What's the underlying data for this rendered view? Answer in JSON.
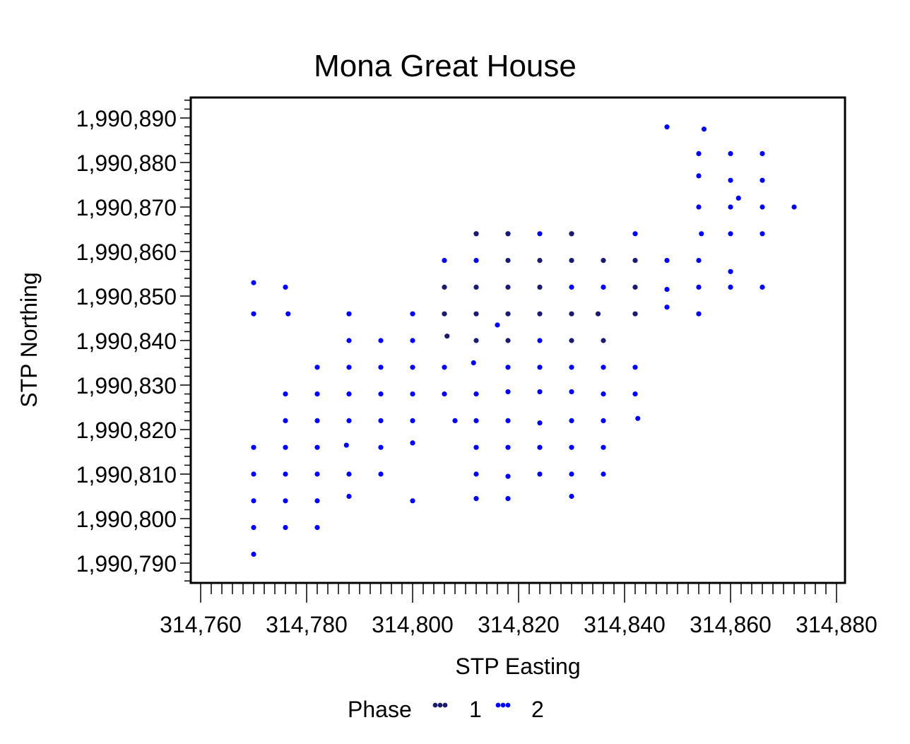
{
  "chart_data": {
    "type": "scatter",
    "title": "Mona Great House",
    "xlabel": "STP Easting",
    "ylabel": "STP Northing",
    "xlim": [
      314756,
      314880
    ],
    "ylim": [
      1990786,
      1990895
    ],
    "x_ticks": [
      314760,
      314780,
      314800,
      314820,
      314840,
      314860,
      314880
    ],
    "x_tick_labels": [
      "314,760",
      "314,780",
      "314,800",
      "314,820",
      "314,840",
      "314,860",
      "314,880"
    ],
    "y_ticks": [
      1990790,
      1990800,
      1990810,
      1990820,
      1990830,
      1990840,
      1990850,
      1990860,
      1990870,
      1990880,
      1990890
    ],
    "y_tick_labels": [
      "1,990,790",
      "1,990,800",
      "1,990,810",
      "1,990,820",
      "1,990,830",
      "1,990,840",
      "1,990,850",
      "1,990,860",
      "1,990,870",
      "1,990,880",
      "1,990,890"
    ],
    "grid": false,
    "legend": {
      "title": "Phase",
      "placement": "bottom"
    },
    "series": [
      {
        "name": "1",
        "color": "#1a1a6e",
        "points": [
          [
            314812,
            1990864
          ],
          [
            314818,
            1990864
          ],
          [
            314830,
            1990864
          ],
          [
            314806,
            1990852
          ],
          [
            314812,
            1990852
          ],
          [
            314818,
            1990852
          ],
          [
            314824,
            1990852
          ],
          [
            314806,
            1990846
          ],
          [
            314812,
            1990846
          ],
          [
            314818,
            1990846
          ],
          [
            314824,
            1990846
          ],
          [
            314830,
            1990846
          ],
          [
            314835,
            1990846
          ],
          [
            314842,
            1990846
          ],
          [
            314812,
            1990840
          ],
          [
            314818,
            1990840
          ],
          [
            314830,
            1990840
          ],
          [
            314836,
            1990840
          ],
          [
            314806.5,
            1990841
          ],
          [
            314818,
            1990858
          ],
          [
            314824,
            1990858
          ],
          [
            314830,
            1990858
          ],
          [
            314836,
            1990858
          ],
          [
            314842,
            1990858
          ],
          [
            314842,
            1990852
          ]
        ]
      },
      {
        "name": "2",
        "color": "#0000ff",
        "points": [
          [
            314848,
            1990888
          ],
          [
            314855,
            1990887.5
          ],
          [
            314854,
            1990882
          ],
          [
            314860,
            1990882
          ],
          [
            314866,
            1990882
          ],
          [
            314854,
            1990877
          ],
          [
            314860,
            1990876
          ],
          [
            314866,
            1990876
          ],
          [
            314854,
            1990870
          ],
          [
            314860,
            1990870
          ],
          [
            314861.5,
            1990872
          ],
          [
            314866,
            1990870
          ],
          [
            314872,
            1990870
          ],
          [
            314812,
            1990864
          ],
          [
            314818,
            1990864
          ],
          [
            314824,
            1990864
          ],
          [
            314830,
            1990864
          ],
          [
            314842,
            1990864
          ],
          [
            314854.5,
            1990864
          ],
          [
            314860,
            1990864
          ],
          [
            314866,
            1990864
          ],
          [
            314806,
            1990858
          ],
          [
            314812,
            1990858
          ],
          [
            314848,
            1990858
          ],
          [
            314854,
            1990858
          ],
          [
            314860,
            1990855.5
          ],
          [
            314830,
            1990852
          ],
          [
            314836,
            1990852
          ],
          [
            314848,
            1990851.5
          ],
          [
            314854,
            1990852
          ],
          [
            314860,
            1990852
          ],
          [
            314866,
            1990852
          ],
          [
            314770,
            1990853
          ],
          [
            314776,
            1990852
          ],
          [
            314770,
            1990846
          ],
          [
            314776.5,
            1990846
          ],
          [
            314788,
            1990846
          ],
          [
            314800,
            1990846
          ],
          [
            314848,
            1990847.5
          ],
          [
            314854,
            1990846
          ],
          [
            314816,
            1990843.5
          ],
          [
            314788,
            1990840
          ],
          [
            314794,
            1990840
          ],
          [
            314800,
            1990840
          ],
          [
            314824,
            1990840
          ],
          [
            314782,
            1990834
          ],
          [
            314788,
            1990834
          ],
          [
            314794,
            1990834
          ],
          [
            314800,
            1990834
          ],
          [
            314806,
            1990834
          ],
          [
            314811.5,
            1990835
          ],
          [
            314818,
            1990834
          ],
          [
            314824,
            1990834
          ],
          [
            314830,
            1990834
          ],
          [
            314836,
            1990834
          ],
          [
            314842,
            1990834
          ],
          [
            314776,
            1990828
          ],
          [
            314782,
            1990828
          ],
          [
            314788,
            1990828
          ],
          [
            314794,
            1990828
          ],
          [
            314800,
            1990828
          ],
          [
            314806,
            1990828
          ],
          [
            314812,
            1990828
          ],
          [
            314818,
            1990828.5
          ],
          [
            314824,
            1990828.5
          ],
          [
            314830,
            1990828.5
          ],
          [
            314836,
            1990828
          ],
          [
            314842,
            1990828
          ],
          [
            314776,
            1990822
          ],
          [
            314782,
            1990822
          ],
          [
            314788,
            1990822
          ],
          [
            314794,
            1990822
          ],
          [
            314800,
            1990822
          ],
          [
            314808,
            1990822
          ],
          [
            314812,
            1990822
          ],
          [
            314818,
            1990822
          ],
          [
            314824,
            1990821.5
          ],
          [
            314830,
            1990822
          ],
          [
            314836,
            1990822
          ],
          [
            314842.5,
            1990822.5
          ],
          [
            314770,
            1990816
          ],
          [
            314776,
            1990816
          ],
          [
            314782,
            1990816
          ],
          [
            314787.5,
            1990816.5
          ],
          [
            314794,
            1990816
          ],
          [
            314800,
            1990817
          ],
          [
            314812,
            1990816
          ],
          [
            314818,
            1990816
          ],
          [
            314824,
            1990816
          ],
          [
            314830,
            1990816
          ],
          [
            314836,
            1990816
          ],
          [
            314770,
            1990810
          ],
          [
            314776,
            1990810
          ],
          [
            314782,
            1990810
          ],
          [
            314788,
            1990810
          ],
          [
            314794,
            1990810
          ],
          [
            314812,
            1990810
          ],
          [
            314818,
            1990809.5
          ],
          [
            314824,
            1990810
          ],
          [
            314830,
            1990810
          ],
          [
            314836,
            1990810
          ],
          [
            314770,
            1990804
          ],
          [
            314776,
            1990804
          ],
          [
            314782,
            1990804
          ],
          [
            314788,
            1990805
          ],
          [
            314800,
            1990804
          ],
          [
            314812,
            1990804.5
          ],
          [
            314818,
            1990804.5
          ],
          [
            314830,
            1990805
          ],
          [
            314770,
            1990798
          ],
          [
            314776,
            1990798
          ],
          [
            314782,
            1990798
          ],
          [
            314770,
            1990792
          ]
        ]
      }
    ]
  }
}
